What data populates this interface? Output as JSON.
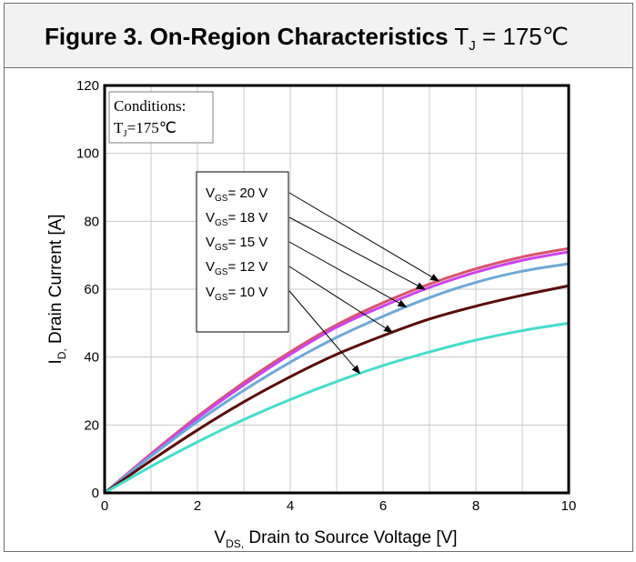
{
  "title": {
    "bold": "Figure 3. On-Region Characteristics",
    "tj_symbol": "T",
    "tj_sub": "J",
    "tj_value": " = 175℃"
  },
  "conditions": {
    "line1": "Conditions:",
    "line2_main": "T",
    "line2_sub": "J",
    "line2_rest": "=175℃"
  },
  "chart_data": {
    "type": "line",
    "title": "Figure 3. On-Region Characteristics TJ = 175℃",
    "xlabel": "VDS, Drain to Source Voltage [V]",
    "ylabel": "ID, Drain Current [A]",
    "xlim": [
      0,
      10
    ],
    "ylim": [
      0,
      120
    ],
    "xticks": [
      0,
      2,
      4,
      6,
      8,
      10
    ],
    "yticks": [
      0,
      20,
      40,
      60,
      80,
      100,
      120
    ],
    "grid": true,
    "x": [
      0,
      1,
      2,
      3,
      4,
      5,
      6,
      7,
      8,
      9,
      10
    ],
    "series": [
      {
        "name": "VGS= 20 V",
        "color": "#d9536b",
        "values": [
          0,
          11.5,
          22.5,
          32.5,
          41.5,
          49.5,
          56.0,
          61.5,
          66.0,
          69.5,
          72.0
        ]
      },
      {
        "name": "VGS= 18 V",
        "color": "#cc44ee",
        "values": [
          0,
          11.2,
          22.0,
          31.8,
          40.8,
          48.8,
          55.0,
          60.5,
          65.0,
          68.5,
          71.0
        ]
      },
      {
        "name": "VGS= 15 V",
        "color": "#6fa8d6",
        "values": [
          0,
          10.8,
          21.0,
          30.2,
          38.5,
          45.8,
          52.0,
          57.5,
          62.0,
          65.3,
          67.5
        ]
      },
      {
        "name": "VGS= 12 V",
        "color": "#5a0a0a",
        "values": [
          0,
          9.5,
          18.5,
          26.8,
          34.2,
          40.8,
          46.3,
          51.2,
          55.0,
          58.2,
          61.0
        ]
      },
      {
        "name": "VGS= 10 V",
        "color": "#44ddcc",
        "values": [
          0,
          7.8,
          15.0,
          21.6,
          27.5,
          32.8,
          37.5,
          41.5,
          45.0,
          47.8,
          50.0
        ]
      }
    ]
  },
  "legend": {
    "prefix": "V",
    "sub": "GS",
    "entries": [
      "= 20 V",
      "= 18 V",
      "= 15 V",
      "= 12 V",
      "= 10 V"
    ]
  },
  "axes": {
    "x_main": "V",
    "x_sub": "DS,",
    "x_rest": " Drain to Source Voltage [V]",
    "y_main": "I",
    "y_sub": "D,",
    "y_rest": " Drain Current [A]"
  }
}
